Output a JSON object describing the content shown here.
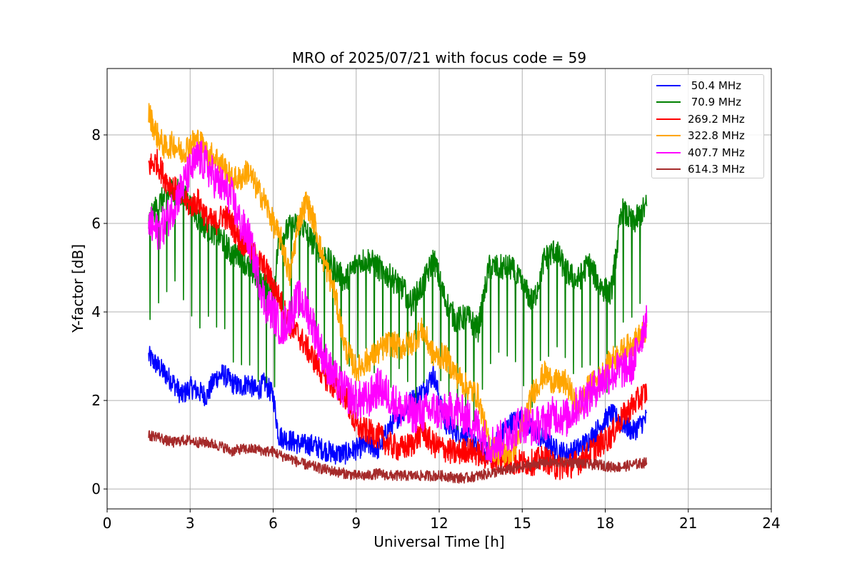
{
  "chart_data": {
    "type": "line",
    "title": "MRO of 2025/07/21 with focus code = 59",
    "xlabel": "Universal Time [h]",
    "ylabel": "Y-factor [dB]",
    "xlim": [
      0,
      24
    ],
    "ylim": [
      -0.45,
      9.5
    ],
    "xticks": [
      0,
      3,
      6,
      9,
      12,
      15,
      18,
      21,
      24
    ],
    "yticks": [
      0,
      2,
      4,
      6,
      8
    ],
    "grid": true,
    "legend_position": "top-right",
    "series": [
      {
        "name": " 50.4 MHz",
        "color": "#0000ff",
        "x": [
          1.5,
          1.8,
          2.1,
          2.4,
          2.7,
          3.0,
          3.3,
          3.6,
          3.9,
          4.2,
          4.5,
          4.8,
          5.1,
          5.4,
          5.7,
          6.0,
          6.2,
          6.6,
          7.0,
          7.4,
          7.8,
          8.2,
          8.6,
          9.0,
          9.4,
          9.8,
          10.2,
          10.6,
          11.0,
          11.4,
          11.8,
          12.2,
          12.6,
          13.0,
          13.4,
          13.8,
          14.2,
          14.6,
          15.0,
          15.4,
          15.8,
          16.2,
          16.6,
          17.0,
          17.4,
          17.8,
          18.2,
          18.6,
          19.0,
          19.5
        ],
        "y": [
          3.0,
          2.8,
          2.6,
          2.4,
          2.1,
          2.3,
          2.2,
          2.1,
          2.5,
          2.6,
          2.4,
          2.3,
          2.4,
          2.2,
          2.4,
          2.1,
          1.2,
          1.1,
          1.0,
          1.0,
          0.9,
          0.8,
          0.8,
          0.9,
          1.0,
          0.9,
          1.4,
          1.7,
          2.0,
          2.2,
          2.6,
          1.5,
          1.3,
          1.2,
          0.9,
          0.8,
          1.2,
          1.5,
          1.6,
          1.3,
          1.1,
          0.9,
          0.8,
          0.9,
          1.1,
          1.4,
          1.7,
          1.5,
          1.3,
          1.6
        ],
        "noise": 0.25
      },
      {
        "name": " 70.9 MHz",
        "color": "#008000",
        "x": [
          1.5,
          1.8,
          2.1,
          2.4,
          2.7,
          3.0,
          3.3,
          3.6,
          3.9,
          4.2,
          4.5,
          4.8,
          5.1,
          5.4,
          5.7,
          6.0,
          6.2,
          6.6,
          7.0,
          7.4,
          7.8,
          8.2,
          8.6,
          9.0,
          9.4,
          9.8,
          10.2,
          10.6,
          11.0,
          11.4,
          11.8,
          12.2,
          12.6,
          13.0,
          13.4,
          13.8,
          14.2,
          14.6,
          15.0,
          15.4,
          15.8,
          16.2,
          16.6,
          17.0,
          17.4,
          17.8,
          18.2,
          18.6,
          19.0,
          19.5
        ],
        "y": [
          6.0,
          6.4,
          6.6,
          6.8,
          6.7,
          6.4,
          6.1,
          5.9,
          5.8,
          5.6,
          5.3,
          5.3,
          5.0,
          4.8,
          4.6,
          4.4,
          5.6,
          5.9,
          6.0,
          5.6,
          5.3,
          5.0,
          4.7,
          5.1,
          5.2,
          5.0,
          4.8,
          4.6,
          4.2,
          4.6,
          5.2,
          4.3,
          3.8,
          3.9,
          3.6,
          5.0,
          5.0,
          5.0,
          4.6,
          4.2,
          5.2,
          5.4,
          4.9,
          4.7,
          5.1,
          4.6,
          4.4,
          6.3,
          6.0,
          6.4
        ],
        "noise": 0.3,
        "dips": {
          "from": 1.55,
          "to": 19.3,
          "period": 0.3,
          "depth": 2.2
        }
      },
      {
        "name": "269.2 MHz",
        "color": "#ff0000",
        "x": [
          1.5,
          1.8,
          2.1,
          2.4,
          2.7,
          3.0,
          3.3,
          3.6,
          3.9,
          4.2,
          4.5,
          4.8,
          5.1,
          5.4,
          5.7,
          6.0,
          6.3,
          6.6,
          6.9,
          7.2,
          7.5,
          7.8,
          8.2,
          8.6,
          9.0,
          9.4,
          9.8,
          10.2,
          10.6,
          11.0,
          11.4,
          11.8,
          12.2,
          12.6,
          13.0,
          13.4,
          13.8,
          14.2,
          14.6,
          15.0,
          15.4,
          15.8,
          16.2,
          16.6,
          17.0,
          17.4,
          17.8,
          18.2,
          18.6,
          19.0,
          19.5
        ],
        "y": [
          7.3,
          7.4,
          7.0,
          6.8,
          6.6,
          6.4,
          6.5,
          6.1,
          6.0,
          6.2,
          6.0,
          5.6,
          5.5,
          5.2,
          5.0,
          4.6,
          4.2,
          3.7,
          3.5,
          3.2,
          2.9,
          2.6,
          2.3,
          2.1,
          1.4,
          1.3,
          1.2,
          1.0,
          0.9,
          1.0,
          1.3,
          1.0,
          0.9,
          0.8,
          0.9,
          0.8,
          0.7,
          0.7,
          0.6,
          0.6,
          0.6,
          0.7,
          0.5,
          0.5,
          0.6,
          0.8,
          1.0,
          1.2,
          1.6,
          1.9,
          2.2
        ],
        "noise": 0.3
      },
      {
        "name": "322.8 MHz",
        "color": "#ffa500",
        "x": [
          1.5,
          1.8,
          2.1,
          2.4,
          2.7,
          3.0,
          3.3,
          3.6,
          3.9,
          4.2,
          4.5,
          4.8,
          5.1,
          5.4,
          5.7,
          6.0,
          6.3,
          6.6,
          6.9,
          7.2,
          7.5,
          7.8,
          8.2,
          8.6,
          9.0,
          9.4,
          9.8,
          10.2,
          10.6,
          11.0,
          11.4,
          11.8,
          12.2,
          12.6,
          13.0,
          13.4,
          13.8,
          14.2,
          14.6,
          15.0,
          15.4,
          15.8,
          16.2,
          16.6,
          17.0,
          17.4,
          17.8,
          18.2,
          18.6,
          19.0,
          19.5
        ],
        "y": [
          8.5,
          8.0,
          7.7,
          7.8,
          7.6,
          7.8,
          7.9,
          7.6,
          7.5,
          7.3,
          7.0,
          7.0,
          7.2,
          6.8,
          6.5,
          6.0,
          5.6,
          4.8,
          6.0,
          6.5,
          6.0,
          5.2,
          4.5,
          3.2,
          2.7,
          2.9,
          3.1,
          3.3,
          3.2,
          3.3,
          3.6,
          3.0,
          3.0,
          2.6,
          2.3,
          2.1,
          1.0,
          0.8,
          0.8,
          1.4,
          2.2,
          2.6,
          2.4,
          2.4,
          1.8,
          2.3,
          2.5,
          2.9,
          3.1,
          3.3,
          3.6
        ],
        "noise": 0.3
      },
      {
        "name": "407.7 MHz",
        "color": "#ff00ff",
        "x": [
          1.5,
          1.8,
          2.1,
          2.4,
          2.7,
          3.0,
          3.3,
          3.6,
          3.9,
          4.2,
          4.5,
          4.8,
          5.1,
          5.4,
          5.7,
          6.0,
          6.3,
          6.6,
          6.9,
          7.2,
          7.5,
          7.8,
          8.2,
          8.6,
          9.0,
          9.4,
          9.8,
          10.2,
          10.6,
          11.0,
          11.4,
          11.8,
          12.2,
          12.6,
          13.0,
          13.4,
          13.8,
          14.2,
          14.6,
          15.0,
          15.4,
          15.8,
          16.2,
          16.6,
          17.0,
          17.4,
          17.8,
          18.2,
          18.6,
          19.0,
          19.5
        ],
        "y": [
          6.0,
          5.8,
          6.0,
          6.4,
          6.8,
          7.2,
          7.5,
          7.3,
          7.0,
          6.8,
          6.6,
          6.0,
          5.7,
          5.0,
          4.2,
          4.0,
          3.6,
          3.9,
          4.3,
          4.1,
          3.6,
          3.0,
          2.5,
          2.2,
          2.0,
          2.0,
          2.3,
          2.1,
          1.8,
          1.7,
          1.7,
          1.8,
          1.7,
          1.8,
          1.6,
          1.4,
          1.0,
          1.1,
          1.3,
          1.5,
          1.4,
          1.5,
          1.7,
          1.6,
          1.9,
          2.1,
          2.4,
          2.6,
          2.7,
          2.8,
          3.9
        ],
        "noise": 0.45
      },
      {
        "name": "614.3 MHz",
        "color": "#a52a2a",
        "x": [
          1.5,
          1.8,
          2.1,
          2.4,
          2.7,
          3.0,
          3.3,
          3.6,
          3.9,
          4.2,
          4.5,
          4.8,
          5.1,
          5.4,
          5.7,
          6.0,
          6.3,
          6.6,
          6.9,
          7.2,
          7.5,
          7.8,
          8.2,
          8.6,
          9.0,
          9.4,
          9.8,
          10.2,
          10.6,
          11.0,
          11.4,
          11.8,
          12.2,
          12.6,
          13.0,
          13.4,
          13.8,
          14.2,
          14.6,
          15.0,
          15.4,
          15.8,
          16.2,
          16.6,
          17.0,
          17.4,
          17.8,
          18.2,
          18.6,
          19.0,
          19.5
        ],
        "y": [
          1.2,
          1.2,
          1.1,
          1.05,
          1.1,
          1.1,
          1.05,
          1.05,
          1.0,
          0.95,
          0.85,
          0.9,
          0.9,
          0.9,
          0.85,
          0.85,
          0.75,
          0.7,
          0.6,
          0.55,
          0.5,
          0.45,
          0.4,
          0.35,
          0.3,
          0.3,
          0.35,
          0.3,
          0.3,
          0.3,
          0.3,
          0.3,
          0.3,
          0.25,
          0.25,
          0.3,
          0.35,
          0.4,
          0.45,
          0.5,
          0.55,
          0.6,
          0.6,
          0.6,
          0.6,
          0.55,
          0.55,
          0.5,
          0.5,
          0.55,
          0.6
        ],
        "noise": 0.12
      }
    ]
  }
}
